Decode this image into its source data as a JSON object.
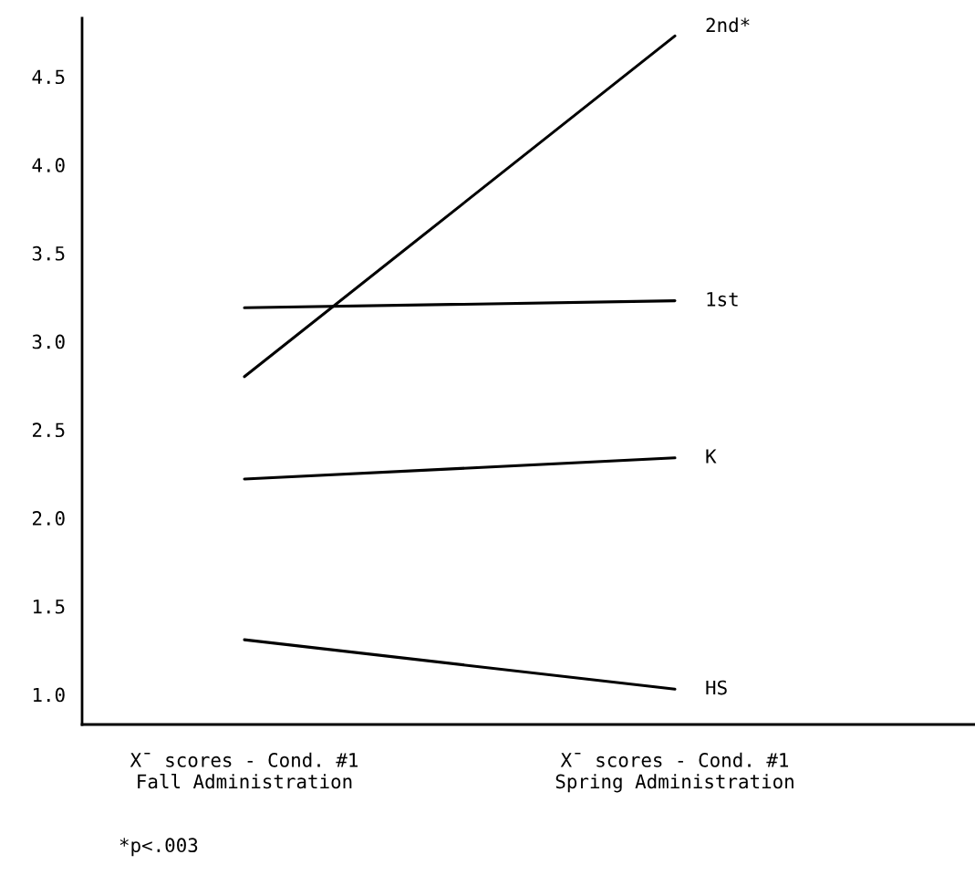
{
  "chart_data": {
    "type": "line",
    "categories": [
      "X̄ scores - Cond. #1\nFall Administration",
      "X̄ scores - Cond. #1\nSpring Administration"
    ],
    "series": [
      {
        "name": "2nd*",
        "color": "#000000",
        "values": [
          2.8,
          4.73
        ]
      },
      {
        "name": "1st",
        "color": "#000000",
        "values": [
          3.19,
          3.23
        ]
      },
      {
        "name": "K",
        "color": "#000000",
        "values": [
          2.22,
          2.34
        ]
      },
      {
        "name": "HS",
        "color": "#000000",
        "values": [
          1.31,
          1.03
        ]
      }
    ],
    "ylim": [
      0.83,
      4.83
    ],
    "yticks": [
      {
        "value": 1.0,
        "label": "1.0"
      },
      {
        "value": 1.5,
        "label": "1.5"
      },
      {
        "value": 2.0,
        "label": "2.0"
      },
      {
        "value": 2.5,
        "label": "2.5"
      },
      {
        "value": 3.0,
        "label": "3.0"
      },
      {
        "value": 3.5,
        "label": "3.5"
      },
      {
        "value": 4.0,
        "label": "4.0"
      },
      {
        "value": 4.5,
        "label": "4.5"
      }
    ],
    "grid": false,
    "legend": false,
    "marker": "none",
    "line_style": "solid",
    "annotations": [
      "*p<.003"
    ]
  }
}
